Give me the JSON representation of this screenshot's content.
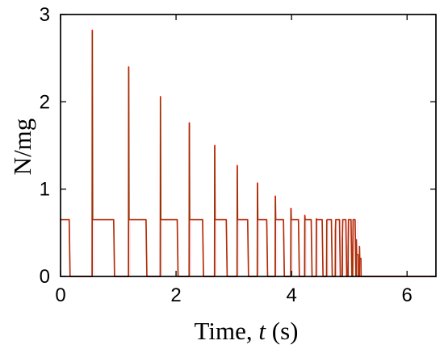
{
  "chart_data": {
    "type": "line",
    "title": "",
    "xlabel_parts": [
      "Time, ",
      "t",
      " (s)"
    ],
    "ylabel": "N/mg",
    "xlim": [
      0,
      6.5
    ],
    "ylim": [
      0,
      3
    ],
    "x_ticks": [
      0,
      2,
      4,
      6
    ],
    "y_ticks": [
      0,
      1,
      2,
      3
    ],
    "grid": false,
    "legend": "none",
    "series": [
      {
        "color": "#ff0000",
        "plateau_value": 0.65,
        "impact_times": [
          0.55,
          1.18,
          1.73,
          2.23,
          2.67,
          3.06,
          3.41,
          3.72,
          3.99,
          4.23,
          4.43,
          4.61,
          4.76,
          4.88,
          4.98,
          5.06,
          5.12
        ],
        "peak_values": [
          2.82,
          2.4,
          2.06,
          1.76,
          1.5,
          1.27,
          1.07,
          0.92,
          0.78,
          0.7,
          0.66,
          0.64,
          0.55,
          0.45,
          0.35,
          0.26,
          0.18
        ],
        "plateau_intervals": [
          [
            0.0,
            0.15
          ],
          [
            0.56,
            0.92
          ],
          [
            1.19,
            1.48
          ],
          [
            1.74,
            2.02
          ],
          [
            2.24,
            2.46
          ],
          [
            2.68,
            2.87
          ],
          [
            3.07,
            3.24
          ],
          [
            3.42,
            3.57
          ],
          [
            3.73,
            3.86
          ],
          [
            4.0,
            4.12
          ],
          [
            4.24,
            4.34
          ],
          [
            4.44,
            4.53
          ],
          [
            4.62,
            4.69
          ],
          [
            4.77,
            4.83
          ],
          [
            4.89,
            4.94
          ],
          [
            4.99,
            5.03
          ],
          [
            5.07,
            5.1
          ]
        ],
        "zero_after": 5.2
      },
      {
        "color": "#7a3f00",
        "plateau_value": 0.65,
        "impact_times": [
          0.55,
          1.18,
          1.73,
          2.23,
          2.67,
          3.06,
          3.41,
          3.72,
          3.99,
          4.23,
          4.43,
          4.61,
          4.76,
          4.88,
          4.98,
          5.06,
          5.12
        ],
        "peak_values": [
          2.79,
          2.38,
          2.04,
          1.74,
          1.48,
          1.25,
          1.05,
          0.9,
          0.76,
          0.68,
          0.65,
          0.63,
          0.53,
          0.43,
          0.33,
          0.24,
          0.16
        ],
        "plateau_intervals": [
          [
            0.0,
            0.15
          ],
          [
            0.56,
            0.92
          ],
          [
            1.19,
            1.48
          ],
          [
            1.74,
            2.02
          ],
          [
            2.24,
            2.46
          ],
          [
            2.68,
            2.87
          ],
          [
            3.07,
            3.24
          ],
          [
            3.42,
            3.57
          ],
          [
            3.73,
            3.86
          ],
          [
            4.0,
            4.12
          ],
          [
            4.24,
            4.34
          ],
          [
            4.44,
            4.53
          ],
          [
            4.62,
            4.69
          ],
          [
            4.77,
            4.83
          ],
          [
            4.89,
            4.94
          ],
          [
            4.99,
            5.03
          ],
          [
            5.07,
            5.1
          ]
        ],
        "zero_after": 5.2
      }
    ]
  }
}
